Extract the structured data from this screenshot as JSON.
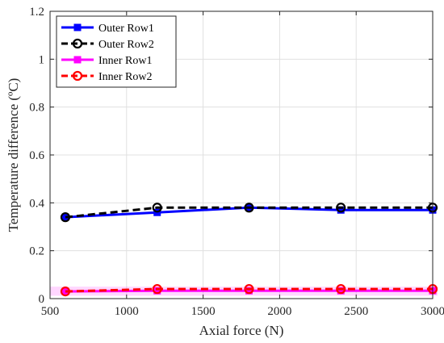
{
  "chart_data": {
    "type": "line",
    "x": [
      600,
      1200,
      1800,
      2400,
      3000
    ],
    "xlabel": "Axial force (N)",
    "ylabel": "Temperature difference (ºC)",
    "xlim": [
      500,
      3000
    ],
    "ylim": [
      0,
      1.2
    ],
    "xticks": [
      500,
      1000,
      1500,
      2000,
      2500,
      3000
    ],
    "yticks": [
      0,
      0.2,
      0.4,
      0.6,
      0.8,
      1,
      1.2
    ],
    "xtick_labels": [
      "500",
      "1000",
      "1500",
      "2000",
      "2500",
      "3000"
    ],
    "ytick_labels": [
      "0",
      "0.2",
      "0.4",
      "0.6",
      "0.8",
      "1",
      "1.2"
    ],
    "grid": true,
    "legend_position": "top-left",
    "series": [
      {
        "name": "Outer Row1",
        "values": [
          0.34,
          0.36,
          0.38,
          0.37,
          0.37
        ],
        "color": "#0000ff",
        "line_style": "solid",
        "marker": "square"
      },
      {
        "name": "Outer Row2",
        "values": [
          0.34,
          0.38,
          0.38,
          0.38,
          0.38
        ],
        "color": "#000000",
        "line_style": "dashed",
        "marker": "circle"
      },
      {
        "name": "Inner Row1",
        "values": [
          0.03,
          0.033,
          0.033,
          0.033,
          0.033
        ],
        "color": "#ff00ff",
        "line_style": "solid",
        "marker": "square"
      },
      {
        "name": "Inner Row2",
        "values": [
          0.03,
          0.04,
          0.04,
          0.04,
          0.04
        ],
        "color": "#ff0000",
        "line_style": "dashed",
        "marker": "circle"
      }
    ]
  }
}
